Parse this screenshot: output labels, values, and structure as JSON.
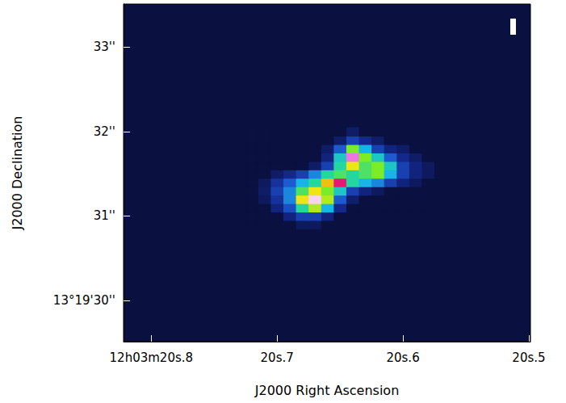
{
  "chart_data": {
    "type": "heatmap",
    "x_label": "J2000 Right Ascension",
    "y_label": "J2000 Declination",
    "xlim": [
      20.822,
      20.4987
    ],
    "xticks": [
      {
        "value": 20.8,
        "label": "12h03m20s.8"
      },
      {
        "value": 20.7,
        "label": "20s.7"
      },
      {
        "value": 20.6,
        "label": "20s.6"
      },
      {
        "value": 20.5,
        "label": "20s.5"
      }
    ],
    "ylim": [
      29.51,
      33.51
    ],
    "yticks": [
      {
        "value": 30,
        "label": "13°19'30''"
      },
      {
        "value": 31,
        "label": "31''"
      },
      {
        "value": 32,
        "label": "32''"
      },
      {
        "value": 33,
        "label": "33''"
      }
    ],
    "grid": false,
    "color_range": [
      0,
      1
    ],
    "cells": {
      "x": [
        20.72,
        20.71,
        20.7,
        20.69,
        20.68,
        20.67,
        20.66,
        20.65,
        20.64,
        20.63,
        20.62,
        20.61,
        20.6,
        20.59,
        20.58,
        20.57
      ],
      "y": [
        30.9,
        31.0,
        31.1,
        31.2,
        31.3,
        31.4,
        31.5,
        31.6,
        31.7,
        31.8,
        31.9,
        32.0
      ],
      "values": [
        [
          0,
          0,
          0,
          0,
          0.04,
          0.04,
          0,
          0,
          0,
          0,
          0,
          0,
          0,
          0,
          0,
          0
        ],
        [
          0,
          0,
          0,
          0.08,
          0.15,
          0.15,
          0.08,
          0,
          0,
          0,
          0,
          0,
          0,
          0,
          0,
          0
        ],
        [
          0,
          0,
          0.08,
          0.18,
          0.4,
          0.55,
          0.3,
          0.1,
          0,
          0,
          0,
          0,
          0,
          0,
          0,
          0
        ],
        [
          0,
          0.04,
          0.12,
          0.25,
          0.6,
          1.0,
          0.55,
          0.2,
          0.06,
          0,
          0,
          0,
          0,
          0,
          0,
          0
        ],
        [
          0,
          0.05,
          0.15,
          0.25,
          0.45,
          0.6,
          0.5,
          0.35,
          0.15,
          0.08,
          0.04,
          0,
          0,
          0,
          0,
          0
        ],
        [
          0,
          0.04,
          0.12,
          0.2,
          0.3,
          0.4,
          0.65,
          0.85,
          0.4,
          0.3,
          0.25,
          0.15,
          0.08,
          0.04,
          0,
          0
        ],
        [
          0,
          0,
          0.05,
          0.1,
          0.15,
          0.25,
          0.4,
          0.45,
          0.4,
          0.45,
          0.5,
          0.3,
          0.15,
          0.08,
          0.04,
          0
        ],
        [
          0,
          0,
          0,
          0,
          0,
          0.05,
          0.15,
          0.4,
          0.6,
          0.45,
          0.5,
          0.35,
          0.15,
          0.08,
          0.04,
          0
        ],
        [
          0,
          0,
          0,
          0,
          0,
          0,
          0.08,
          0.35,
          0.95,
          0.5,
          0.35,
          0.2,
          0.1,
          0.05,
          0,
          0
        ],
        [
          0,
          0,
          0,
          0,
          0,
          0,
          0.05,
          0.2,
          0.5,
          0.3,
          0.15,
          0.08,
          0.05,
          0,
          0,
          0
        ],
        [
          0,
          0,
          0,
          0,
          0,
          0,
          0,
          0.05,
          0.15,
          0.1,
          0.05,
          0,
          0,
          0,
          0,
          0
        ],
        [
          0,
          0,
          0,
          0,
          0,
          0,
          0,
          0,
          0.05,
          0,
          0,
          0,
          0,
          0,
          0,
          0
        ]
      ]
    }
  }
}
